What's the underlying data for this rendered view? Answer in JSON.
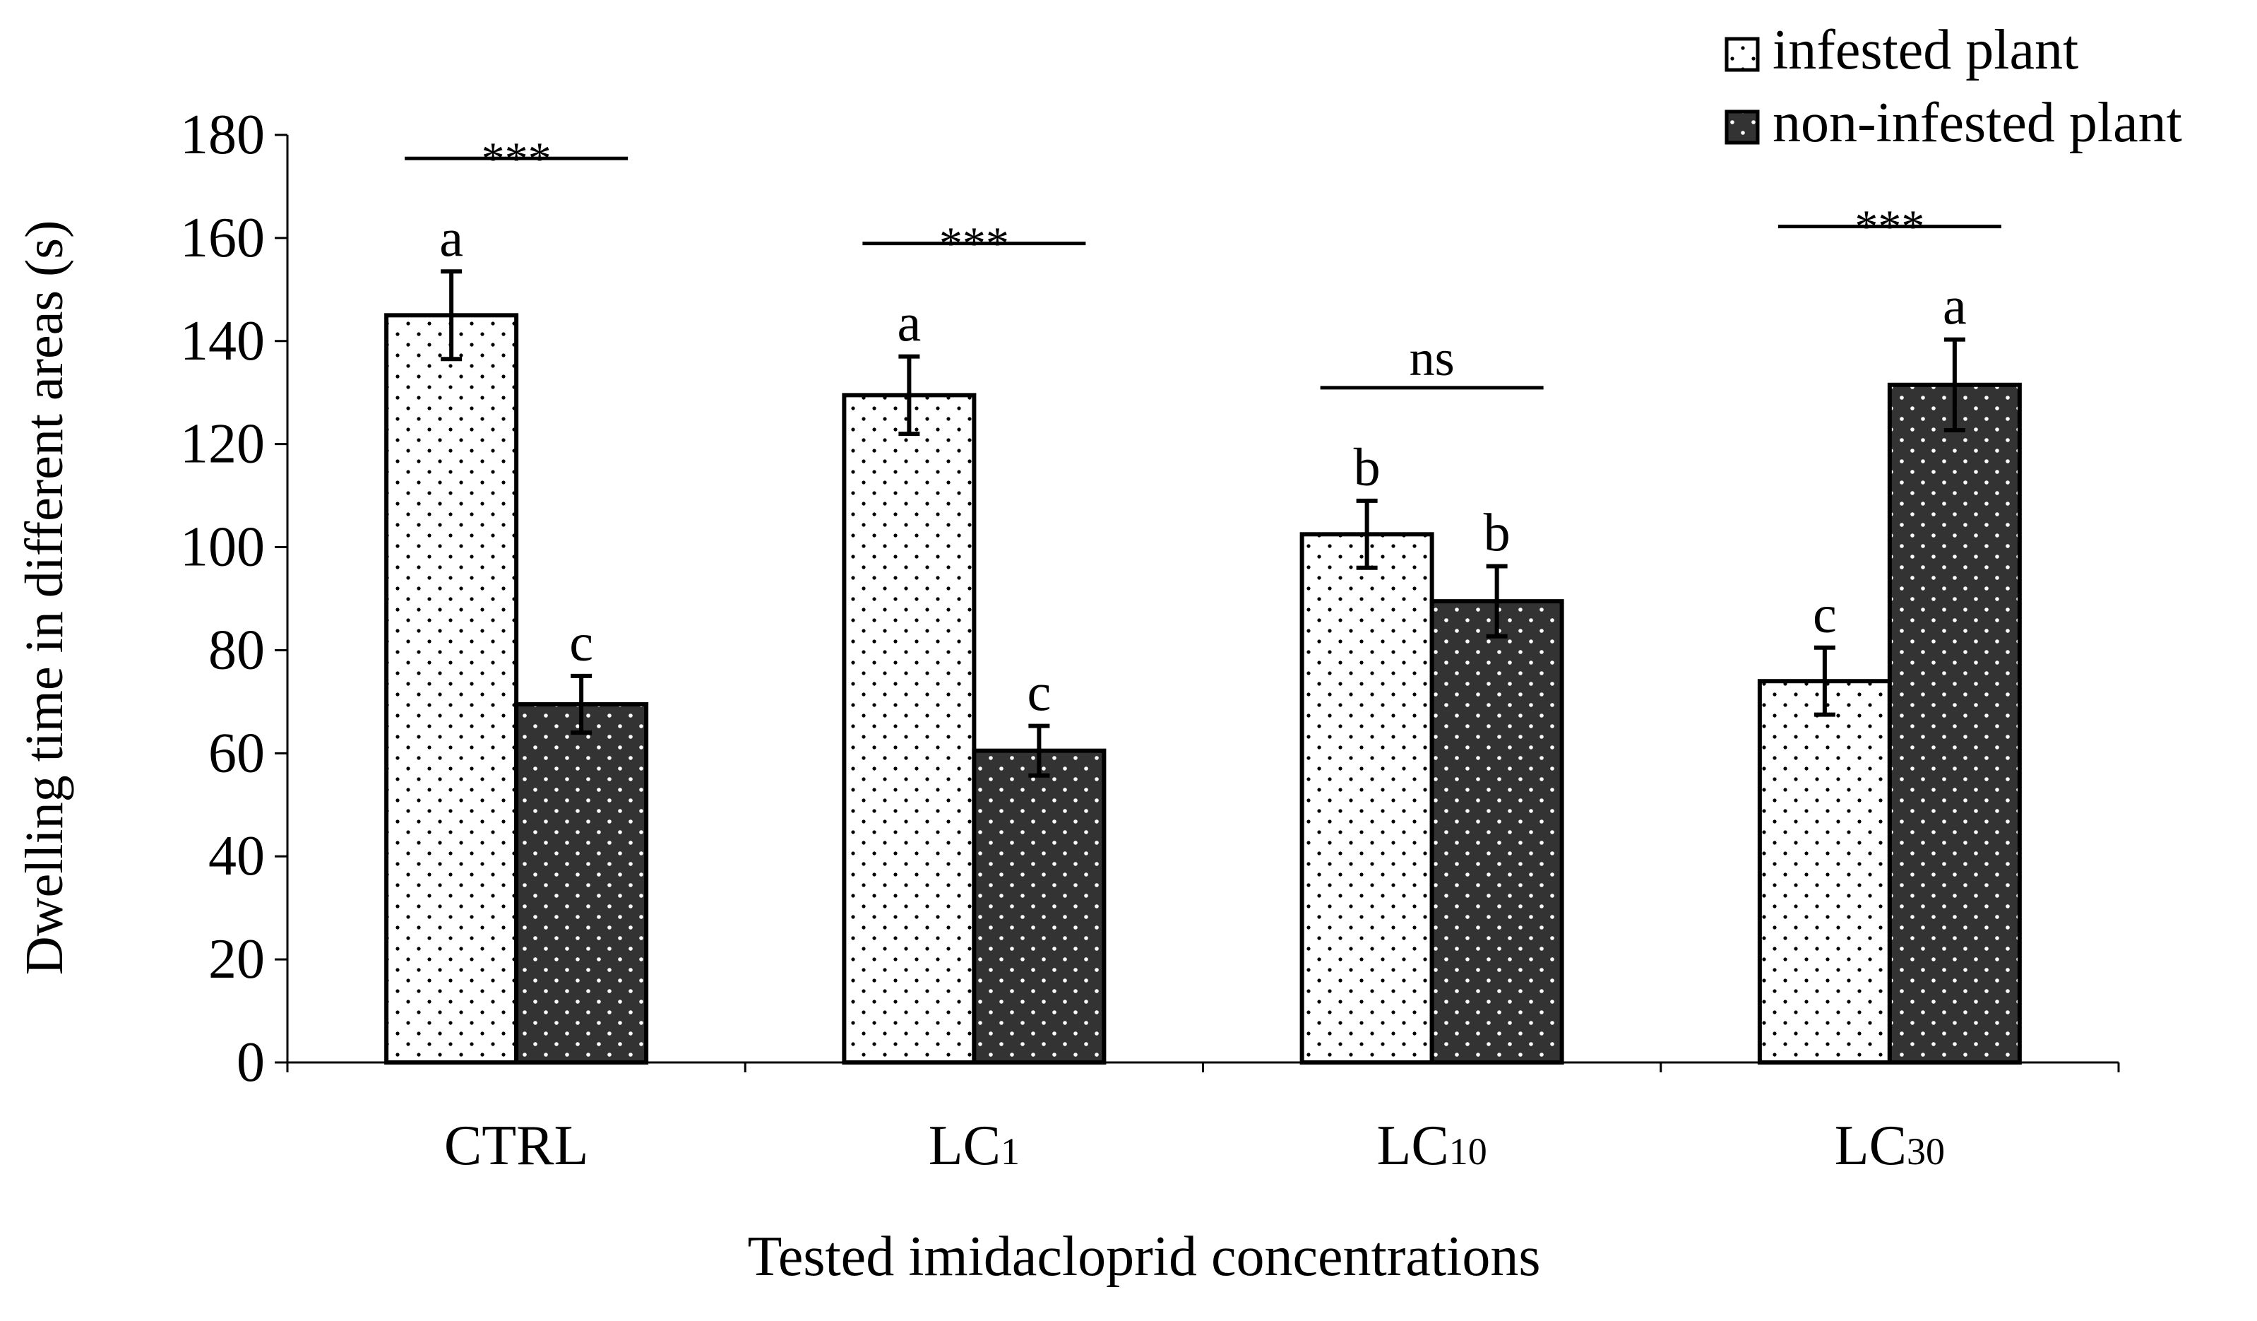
{
  "chart_data": {
    "type": "bar",
    "title": "",
    "xlabel": "Tested imidacloprid concentrations",
    "ylabel": "Dwelling time in different areas (s)",
    "ylim": [
      0,
      180
    ],
    "yticks": [
      0,
      20,
      40,
      60,
      80,
      100,
      120,
      140,
      160,
      180
    ],
    "categories": [
      {
        "main": "CTRL",
        "sub": ""
      },
      {
        "main": "LC",
        "sub": "1"
      },
      {
        "main": "LC",
        "sub": "10"
      },
      {
        "main": "LC",
        "sub": "30"
      }
    ],
    "series": [
      {
        "name": "infested plant",
        "values": [
          145,
          129.5,
          102.5,
          74
        ],
        "errors": [
          8.5,
          7.5,
          6.5,
          6.5
        ],
        "letters": [
          "a",
          "a",
          "b",
          "c"
        ],
        "fill": "#ffffff",
        "dot_color": "#000000"
      },
      {
        "name": "non-infested plant",
        "values": [
          69.5,
          60.5,
          89.5,
          131.5
        ],
        "errors": [
          5.5,
          4.8,
          6.8,
          8.8
        ],
        "letters": [
          "c",
          "c",
          "b",
          "a"
        ],
        "fill": "#333333",
        "dot_color": "#ffffff"
      }
    ],
    "significance": [
      "***",
      "***",
      "ns",
      "***"
    ],
    "grid": false,
    "legend_position": "top-right"
  }
}
